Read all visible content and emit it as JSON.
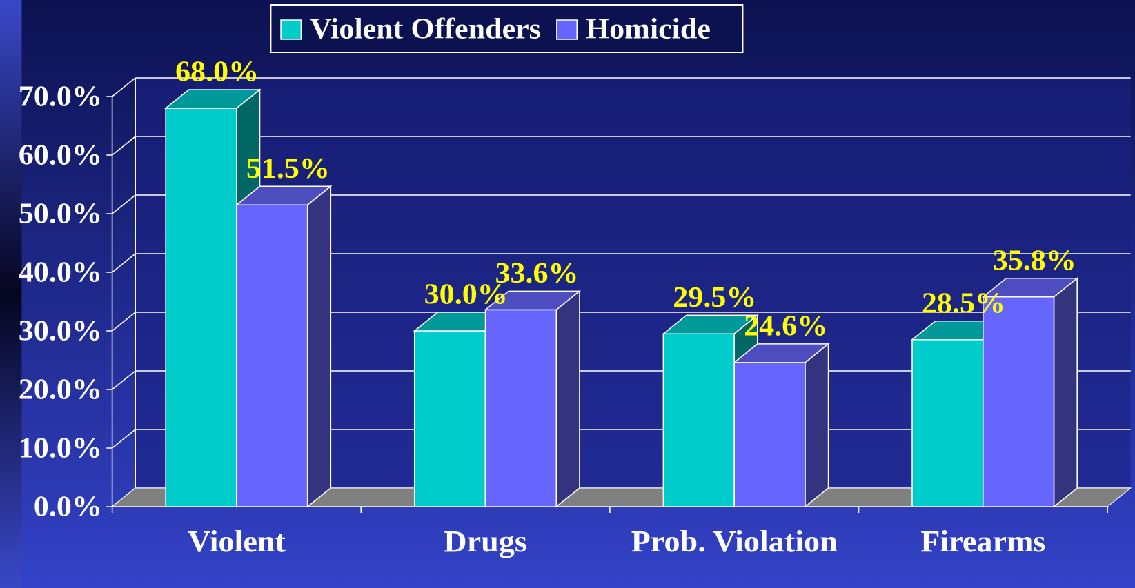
{
  "chart_data": {
    "type": "bar3d",
    "categories": [
      "Violent",
      "Drugs",
      "Prob. Violation",
      "Firearms"
    ],
    "series": [
      {
        "name": "Violent Offenders",
        "color": "#00cccc",
        "values": [
          68.0,
          30.0,
          29.5,
          28.5
        ],
        "value_labels": [
          "68.0%",
          "30.0%",
          "29.5%",
          "28.5%"
        ]
      },
      {
        "name": "Homicide",
        "color": "#6666ff",
        "values": [
          51.5,
          33.6,
          24.6,
          35.8
        ],
        "value_labels": [
          "51.5%",
          "33.6%",
          "24.6%",
          "35.8%"
        ]
      }
    ],
    "ylim": [
      0,
      70
    ],
    "yticks": [
      {
        "value": 0,
        "label": "0.0%"
      },
      {
        "value": 10,
        "label": "10.0%"
      },
      {
        "value": 20,
        "label": "20.0%"
      },
      {
        "value": 30,
        "label": "30.0%"
      },
      {
        "value": 40,
        "label": "40.0%"
      },
      {
        "value": 50,
        "label": "50.0%"
      },
      {
        "value": 60,
        "label": "60.0%"
      },
      {
        "value": 70,
        "label": "70.0%"
      }
    ],
    "grid": true,
    "legend": "top"
  }
}
